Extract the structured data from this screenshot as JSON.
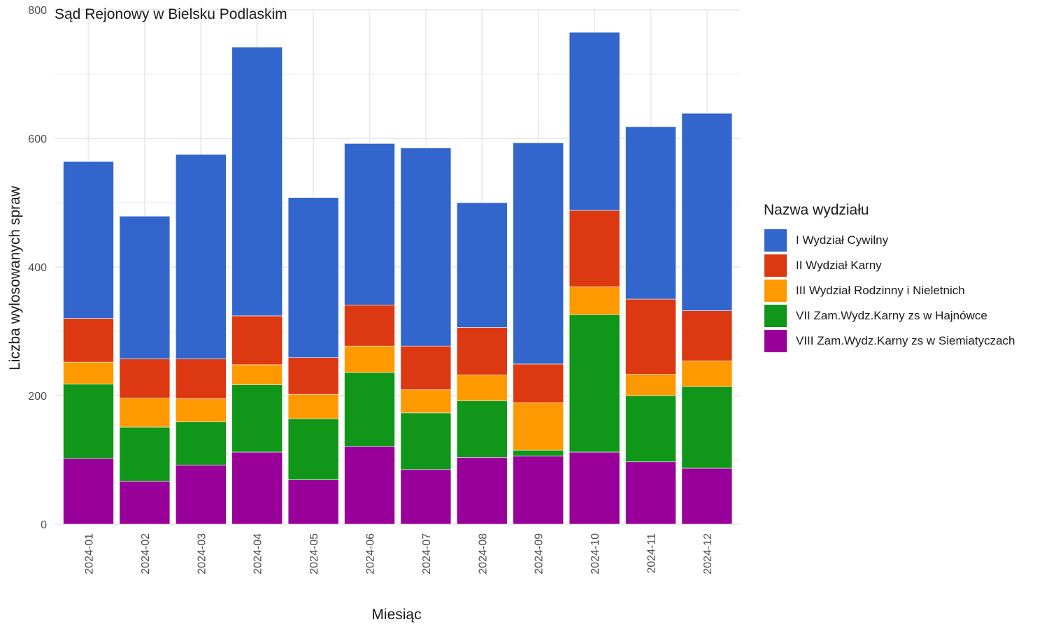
{
  "chart_data": {
    "type": "bar",
    "stacked": true,
    "title": "Sąd Rejonowy w Bielsku Podlaskim",
    "xlabel": "Miesiąc",
    "ylabel": "Liczba wylosowanych spraw",
    "ylim": [
      0,
      800
    ],
    "y_ticks": [
      "0",
      "200",
      "400",
      "600",
      "800"
    ],
    "grid": true,
    "legend_position": "right",
    "legend_title": "Nazwa wydziału",
    "categories": [
      "2024-01",
      "2024-02",
      "2024-03",
      "2024-04",
      "2024-05",
      "2024-06",
      "2024-07",
      "2024-08",
      "2024-09",
      "2024-10",
      "2024-11",
      "2024-12"
    ],
    "series": [
      {
        "name": "VIII Zam.Wydz.Karny zs w Siemiatyczach",
        "color": "#990099",
        "values": [
          102,
          67,
          92,
          112,
          69,
          121,
          85,
          104,
          106,
          112,
          97,
          87
        ]
      },
      {
        "name": "VII Zam.Wydz.Karny zs w Hajnówce",
        "color": "#109618",
        "values": [
          116,
          84,
          67,
          105,
          95,
          115,
          88,
          88,
          9,
          214,
          103,
          127
        ]
      },
      {
        "name": "III Wydział Rodzinny i Nieletnich",
        "color": "#ff9900",
        "values": [
          34,
          45,
          36,
          31,
          38,
          41,
          36,
          40,
          74,
          43,
          33,
          40
        ]
      },
      {
        "name": "II Wydział Karny",
        "color": "#dc3912",
        "values": [
          68,
          61,
          62,
          76,
          57,
          64,
          68,
          74,
          60,
          119,
          117,
          78
        ]
      },
      {
        "name": "I Wydział Cywilny",
        "color": "#3366cc",
        "values": [
          244,
          222,
          318,
          418,
          249,
          251,
          308,
          194,
          344,
          277,
          268,
          307
        ]
      }
    ]
  }
}
